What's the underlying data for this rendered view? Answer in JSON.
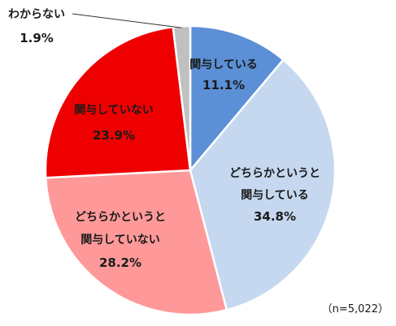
{
  "chart_data": {
    "type": "pie",
    "start_angle_deg": 0,
    "direction": "clockwise",
    "slices": [
      {
        "label_lines": [
          "関与している"
        ],
        "value": 11.1,
        "pct_text": "11.1%",
        "color": "#5b8fd6"
      },
      {
        "label_lines": [
          "どちらかというと",
          "関与している"
        ],
        "value": 34.8,
        "pct_text": "34.8%",
        "color": "#c5d8f0"
      },
      {
        "label_lines": [
          "どちらかというと",
          "関与していない"
        ],
        "value": 28.2,
        "pct_text": "28.2%",
        "color": "#ff9999"
      },
      {
        "label_lines": [
          "関与していない"
        ],
        "value": 23.9,
        "pct_text": "23.9%",
        "color": "#ee0000"
      },
      {
        "label_lines": [
          "わからない"
        ],
        "value": 1.9,
        "pct_text": "1.9%",
        "color": "#c0c0c0"
      }
    ],
    "note": "（n=5,022）"
  }
}
